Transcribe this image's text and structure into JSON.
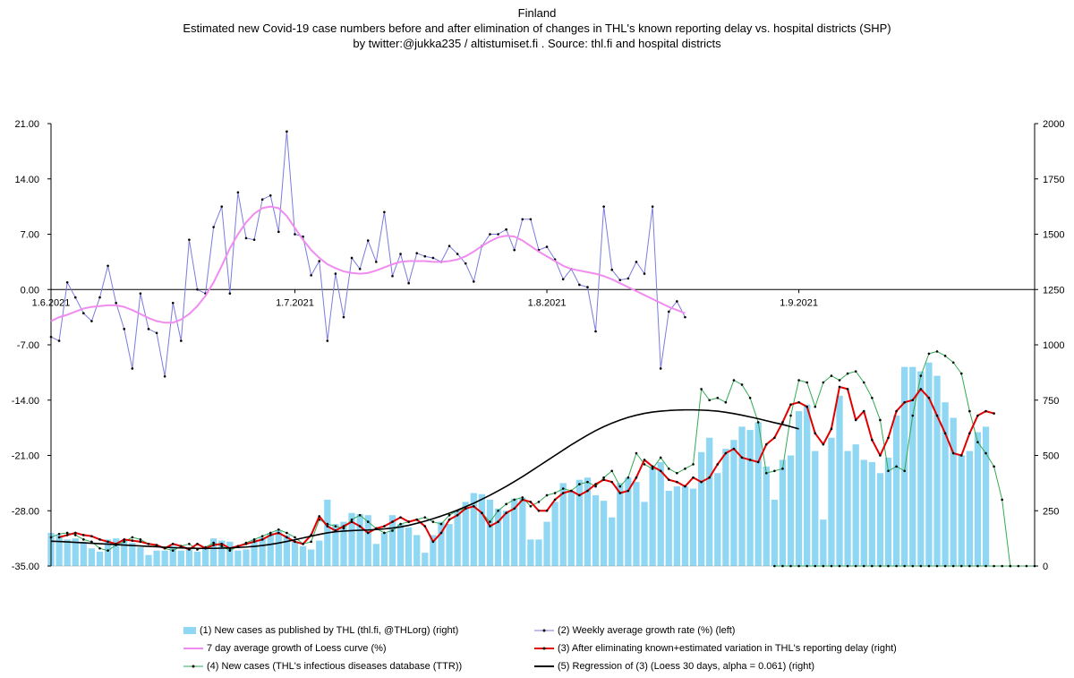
{
  "chart_data": {
    "type": "bar+line",
    "title_lines": [
      "Finland",
      "Estimated new Covid-19 case numbers before and after elimination of changes in THL's known reporting delay vs. hospital districts (SHP)",
      "by twitter:@jukka235  / altistumiset.fi . Source: thl.fi and hospital districts"
    ],
    "left_axis": {
      "min": -35,
      "max": 21,
      "ticks": [
        21,
        14,
        7,
        0,
        -7,
        -14,
        -21,
        -28,
        -35
      ],
      "tick_labels": [
        "21.00",
        "14.00",
        "7.00",
        "0.00",
        "-7.00",
        "-14.00",
        "-21.00",
        "-28.00",
        "-35.00"
      ]
    },
    "right_axis": {
      "min": 0,
      "max": 2000,
      "ticks": [
        2000,
        1750,
        1500,
        1250,
        1000,
        750,
        500,
        250,
        0
      ],
      "tick_labels": [
        "2000",
        "1750",
        "1500",
        "1250",
        "1000",
        "750",
        "500",
        "250",
        "0"
      ]
    },
    "x_axis": {
      "start": "2021-06-01",
      "end": "2021-09-30",
      "labels": [
        {
          "date": "2021-06-01",
          "text": "1.6.2021"
        },
        {
          "date": "2021-07-01",
          "text": "1.7.2021"
        },
        {
          "date": "2021-08-01",
          "text": "1.8.2021"
        },
        {
          "date": "2021-09-01",
          "text": "1.9.2021"
        }
      ]
    },
    "colors": {
      "bars": "#8fd7f3",
      "growth": "#7b7bde",
      "loess_growth": "#f08cf0",
      "adjusted": "#e00000",
      "ttr": "#33aa55",
      "regression": "#000000"
    },
    "series": [
      {
        "name": "(1) New cases as published by THL (thl.fi, @THLorg) (right)",
        "axis": "right",
        "kind": "bar",
        "start": "2021-06-01",
        "values": [
          150,
          140,
          120,
          125,
          110,
          80,
          65,
          120,
          125,
          115,
          105,
          85,
          50,
          70,
          70,
          90,
          70,
          75,
          65,
          90,
          125,
          115,
          110,
          70,
          75,
          120,
          130,
          150,
          160,
          140,
          110,
          90,
          75,
          115,
          300,
          190,
          200,
          240,
          235,
          230,
          100,
          150,
          230,
          190,
          175,
          140,
          60,
          140,
          200,
          190,
          250,
          290,
          330,
          325,
          300,
          260,
          250,
          305,
          310,
          120,
          120,
          200,
          290,
          375,
          340,
          390,
          400,
          320,
          295,
          220,
          375,
          400,
          380,
          290,
          450,
          470,
          340,
          360,
          360,
          350,
          515,
          580,
          420,
          530,
          570,
          630,
          615,
          650,
          450,
          300,
          480,
          500,
          700,
          730,
          520,
          210,
          580,
          770,
          520,
          550,
          480,
          470,
          420,
          490,
          680,
          900,
          900,
          880,
          920,
          860,
          740,
          670,
          500,
          520,
          605,
          630
        ]
      },
      {
        "name": "(2) Weekly average growth rate (%) (left)",
        "axis": "left",
        "kind": "line",
        "start": "2021-06-01",
        "values": [
          -6,
          -6.5,
          0.9,
          -1,
          -3,
          -4,
          -1,
          3,
          -1.7,
          -5,
          -10,
          -0.5,
          -5,
          -5.5,
          -11,
          -1.7,
          -6.5,
          6.3,
          0,
          -0.5,
          7.9,
          10.5,
          -0.5,
          12.3,
          6.5,
          6.3,
          11.4,
          11.9,
          7.3,
          20,
          7,
          6.7,
          1.8,
          3.6,
          -6.5,
          2,
          -3.5,
          4,
          2.6,
          6.2,
          3.5,
          9.8,
          1.7,
          4.5,
          0.8,
          4.6,
          4.2,
          4,
          3.5,
          5.5,
          4.5,
          3.3,
          1,
          5.5,
          7,
          7,
          7.6,
          5,
          8.9,
          8.9,
          5,
          5.4,
          3.8,
          1.3,
          2.6,
          0.6,
          0.3,
          -5.3,
          10.5,
          2.5,
          1.2,
          1.4,
          3.5,
          2,
          10.5,
          -10,
          -2.8,
          -1.5,
          -3.5
        ]
      },
      {
        "name": "7 day average growth of Loess curve (%)",
        "axis": "left",
        "kind": "line",
        "start": "2021-06-01",
        "values": [
          -4,
          -3.5,
          -3.2,
          -2.8,
          -2.4,
          -2.2,
          -2.1,
          -2,
          -2,
          -2.2,
          -2.6,
          -3.1,
          -3.6,
          -4,
          -4.2,
          -4.2,
          -3.8,
          -3.1,
          -2.1,
          -0.8,
          0.9,
          3,
          5.2,
          7,
          8.5,
          9.6,
          10.3,
          10.5,
          10.3,
          9.3,
          7.8,
          6.3,
          5,
          4,
          3.2,
          2.7,
          2.3,
          2.1,
          2,
          2.1,
          2.4,
          2.8,
          3.2,
          3.5,
          3.6,
          3.6,
          3.6,
          3.5,
          3.5,
          3.6,
          3.8,
          4.2,
          4.8,
          5.5,
          6.1,
          6.6,
          6.8,
          6.7,
          6.2,
          5.5,
          4.8,
          4.2,
          3.6,
          3,
          2.6,
          2.4,
          2.2,
          2,
          1.7,
          1.3,
          0.8,
          0.3,
          -0.2,
          -0.7,
          -1.2,
          -1.7,
          -2.2,
          -2.6,
          -3
        ]
      },
      {
        "name": "(3) After eliminating known+estimated variation in THL's reporting delay (right)",
        "axis": "right",
        "kind": "line",
        "start": "2021-06-02",
        "values": [
          130,
          140,
          150,
          140,
          135,
          120,
          110,
          100,
          120,
          115,
          110,
          100,
          95,
          80,
          100,
          90,
          75,
          100,
          80,
          95,
          100,
          80,
          90,
          100,
          110,
          120,
          140,
          150,
          130,
          110,
          100,
          140,
          225,
          180,
          160,
          180,
          200,
          180,
          150,
          170,
          180,
          200,
          220,
          200,
          210,
          180,
          110,
          150,
          210,
          230,
          260,
          270,
          240,
          180,
          200,
          240,
          260,
          300,
          290,
          250,
          250,
          300,
          330,
          340,
          320,
          340,
          370,
          390,
          380,
          330,
          340,
          400,
          480,
          450,
          430,
          390,
          380,
          360,
          400,
          380,
          400,
          460,
          510,
          530,
          490,
          480,
          470,
          550,
          580,
          650,
          730,
          740,
          720,
          600,
          550,
          620,
          810,
          800,
          660,
          700,
          570,
          500,
          580,
          700,
          740,
          750,
          800,
          760,
          680,
          600,
          510,
          500,
          600,
          680,
          700,
          690
        ]
      },
      {
        "name": "(4) New cases (THL's infectious diseases database (TTR))",
        "axis": "right",
        "kind": "line",
        "start": "2021-06-01",
        "values": [
          130,
          145,
          150,
          140,
          120,
          110,
          80,
          70,
          95,
          110,
          130,
          120,
          100,
          90,
          80,
          70,
          90,
          100,
          75,
          85,
          105,
          90,
          70,
          90,
          105,
          120,
          135,
          150,
          165,
          150,
          130,
          100,
          110,
          210,
          190,
          180,
          170,
          210,
          230,
          200,
          170,
          150,
          160,
          190,
          200,
          210,
          220,
          200,
          190,
          230,
          250,
          260,
          270,
          240,
          200,
          250,
          280,
          300,
          310,
          270,
          290,
          320,
          330,
          350,
          340,
          370,
          380,
          360,
          400,
          430,
          360,
          400,
          510,
          460,
          440,
          490,
          440,
          420,
          440,
          460,
          800,
          750,
          760,
          740,
          840,
          820,
          760,
          650,
          420,
          430,
          440,
          680,
          840,
          830,
          720,
          830,
          860,
          840,
          870,
          880,
          830,
          760,
          660,
          430,
          450,
          430,
          680,
          860,
          960,
          970,
          950,
          920,
          870,
          700,
          560,
          510,
          450,
          300,
          0
        ]
      },
      {
        "name": "(5) Regression of (3) (Loess 30 days, alpha = 0.061) (right)",
        "axis": "right",
        "kind": "line",
        "start": "2021-06-01",
        "values": [
          112,
          111,
          109,
          107,
          105,
          103,
          101,
          99,
          97,
          95,
          93,
          91,
          89,
          87,
          85,
          83,
          82,
          81,
          80,
          80,
          80,
          81,
          82,
          84,
          86,
          89,
          93,
          98,
          104,
          111,
          119,
          127,
          135,
          143,
          150,
          155,
          158,
          160,
          162,
          163,
          165,
          168,
          172,
          177,
          184,
          193,
          203,
          214,
          226,
          239,
          253,
          268,
          284,
          302,
          320,
          340,
          360,
          382,
          404,
          428,
          452,
          476,
          500,
          524,
          548,
          570,
          592,
          612,
          630,
          646,
          660,
          672,
          682,
          690,
          696,
          700,
          703,
          705,
          706,
          706,
          705,
          703,
          700,
          695,
          689,
          682,
          674,
          666,
          657,
          648,
          640,
          630,
          620
        ]
      }
    ],
    "ttr_zero_extension": {
      "start": "2021-08-29",
      "end": "2021-09-30",
      "value": 0
    },
    "legend": [
      {
        "key": "bars",
        "text": "(1) New cases as published by THL (thl.fi, @THLorg) (right)"
      },
      {
        "key": "growth",
        "text": "(2) Weekly average growth rate (%) (left)"
      },
      {
        "key": "loess_growth",
        "text": "7 day average growth of Loess curve (%)"
      },
      {
        "key": "adjusted",
        "text": "(3) After eliminating known+estimated variation in THL's reporting delay (right)"
      },
      {
        "key": "ttr",
        "text": "(4) New cases (THL's infectious diseases database (TTR))"
      },
      {
        "key": "regression",
        "text": "(5) Regression of (3) (Loess 30 days, alpha = 0.061) (right)"
      }
    ],
    "legend_position": "bottom",
    "grid": false
  }
}
